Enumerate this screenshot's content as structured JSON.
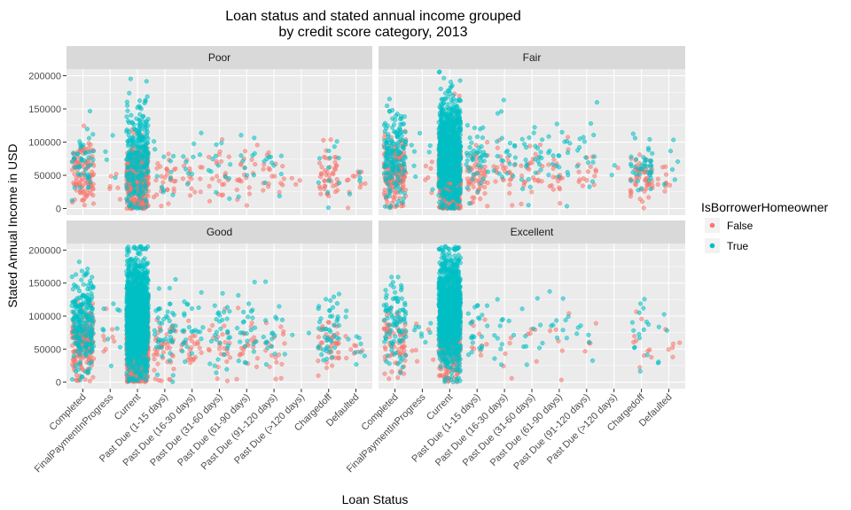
{
  "chart_data": {
    "type": "scatter",
    "title_line1": "Loan status and stated annual income grouped",
    "title_line2": "by credit score category, 2013",
    "xlabel": "Loan Status",
    "ylabel": "Stated Annual Income in USD",
    "ylim": [
      -10000,
      210000
    ],
    "y_ticks": [
      0,
      50000,
      100000,
      150000,
      200000
    ],
    "y_tick_labels": [
      "0",
      "50000",
      "100000",
      "150000",
      "200000"
    ],
    "categories": [
      "Completed",
      "FinalPaymentInProgress",
      "Current",
      "Past Due (1-15 days)",
      "Past Due (16-30 days)",
      "Past Due (31-60 days)",
      "Past Due (61-90 days)",
      "Past Due (91-120 days)",
      "Past Due (>120 days)",
      "Chargedoff",
      "Defaulted"
    ],
    "legend": {
      "title": "IsBorrowerHomeowner",
      "position": "right",
      "entries": [
        {
          "label": "False",
          "color": "#F8766D"
        },
        {
          "label": "True",
          "color": "#00BFC4"
        }
      ]
    },
    "facets": [
      {
        "name": "Poor",
        "groups": [
          {
            "cat": 0,
            "homeowner": false,
            "n": 110,
            "center": 55000,
            "spread": 25000
          },
          {
            "cat": 0,
            "homeowner": true,
            "n": 45,
            "center": 70000,
            "spread": 28000
          },
          {
            "cat": 1,
            "homeowner": false,
            "n": 6,
            "center": 40000,
            "spread": 15000
          },
          {
            "cat": 1,
            "homeowner": true,
            "n": 4,
            "center": 80000,
            "spread": 30000
          },
          {
            "cat": 2,
            "homeowner": false,
            "n": 380,
            "center": 45000,
            "spread": 28000
          },
          {
            "cat": 2,
            "homeowner": true,
            "n": 260,
            "center": 75000,
            "spread": 40000
          },
          {
            "cat": 3,
            "homeowner": false,
            "n": 30,
            "center": 45000,
            "spread": 20000
          },
          {
            "cat": 3,
            "homeowner": true,
            "n": 12,
            "center": 65000,
            "spread": 25000
          },
          {
            "cat": 4,
            "homeowner": false,
            "n": 15,
            "center": 45000,
            "spread": 20000
          },
          {
            "cat": 4,
            "homeowner": true,
            "n": 10,
            "center": 70000,
            "spread": 25000
          },
          {
            "cat": 5,
            "homeowner": false,
            "n": 22,
            "center": 50000,
            "spread": 20000
          },
          {
            "cat": 5,
            "homeowner": true,
            "n": 12,
            "center": 70000,
            "spread": 25000
          },
          {
            "cat": 6,
            "homeowner": false,
            "n": 20,
            "center": 50000,
            "spread": 20000
          },
          {
            "cat": 6,
            "homeowner": true,
            "n": 10,
            "center": 70000,
            "spread": 25000
          },
          {
            "cat": 7,
            "homeowner": false,
            "n": 18,
            "center": 45000,
            "spread": 18000
          },
          {
            "cat": 7,
            "homeowner": true,
            "n": 10,
            "center": 70000,
            "spread": 22000
          },
          {
            "cat": 8,
            "homeowner": false,
            "n": 3,
            "center": 40000,
            "spread": 10000
          },
          {
            "cat": 9,
            "homeowner": false,
            "n": 45,
            "center": 50000,
            "spread": 25000
          },
          {
            "cat": 9,
            "homeowner": true,
            "n": 12,
            "center": 70000,
            "spread": 30000
          },
          {
            "cat": 10,
            "homeowner": false,
            "n": 12,
            "center": 40000,
            "spread": 15000
          },
          {
            "cat": 10,
            "homeowner": true,
            "n": 4,
            "center": 45000,
            "spread": 15000
          }
        ]
      },
      {
        "name": "Fair",
        "groups": [
          {
            "cat": 0,
            "homeowner": false,
            "n": 170,
            "center": 55000,
            "spread": 25000
          },
          {
            "cat": 0,
            "homeowner": true,
            "n": 160,
            "center": 80000,
            "spread": 35000
          },
          {
            "cat": 1,
            "homeowner": false,
            "n": 6,
            "center": 50000,
            "spread": 20000
          },
          {
            "cat": 1,
            "homeowner": true,
            "n": 8,
            "center": 80000,
            "spread": 30000
          },
          {
            "cat": 2,
            "homeowner": false,
            "n": 700,
            "center": 55000,
            "spread": 30000
          },
          {
            "cat": 2,
            "homeowner": true,
            "n": 900,
            "center": 85000,
            "spread": 40000
          },
          {
            "cat": 3,
            "homeowner": false,
            "n": 55,
            "center": 50000,
            "spread": 20000
          },
          {
            "cat": 3,
            "homeowner": true,
            "n": 45,
            "center": 75000,
            "spread": 28000
          },
          {
            "cat": 4,
            "homeowner": false,
            "n": 25,
            "center": 50000,
            "spread": 20000
          },
          {
            "cat": 4,
            "homeowner": true,
            "n": 22,
            "center": 75000,
            "spread": 28000
          },
          {
            "cat": 5,
            "homeowner": false,
            "n": 25,
            "center": 50000,
            "spread": 20000
          },
          {
            "cat": 5,
            "homeowner": true,
            "n": 25,
            "center": 75000,
            "spread": 28000
          },
          {
            "cat": 6,
            "homeowner": false,
            "n": 20,
            "center": 50000,
            "spread": 20000
          },
          {
            "cat": 6,
            "homeowner": true,
            "n": 20,
            "center": 75000,
            "spread": 28000
          },
          {
            "cat": 7,
            "homeowner": false,
            "n": 15,
            "center": 50000,
            "spread": 20000
          },
          {
            "cat": 7,
            "homeowner": true,
            "n": 15,
            "center": 75000,
            "spread": 28000
          },
          {
            "cat": 8,
            "homeowner": false,
            "n": 1,
            "center": 50000,
            "spread": 10000
          },
          {
            "cat": 8,
            "homeowner": true,
            "n": 2,
            "center": 60000,
            "spread": 15000
          },
          {
            "cat": 9,
            "homeowner": false,
            "n": 55,
            "center": 45000,
            "spread": 20000
          },
          {
            "cat": 9,
            "homeowner": true,
            "n": 40,
            "center": 65000,
            "spread": 25000
          },
          {
            "cat": 10,
            "homeowner": false,
            "n": 10,
            "center": 40000,
            "spread": 15000
          },
          {
            "cat": 10,
            "homeowner": true,
            "n": 6,
            "center": 70000,
            "spread": 30000
          }
        ]
      },
      {
        "name": "Good",
        "groups": [
          {
            "cat": 0,
            "homeowner": false,
            "n": 200,
            "center": 60000,
            "spread": 28000
          },
          {
            "cat": 0,
            "homeowner": true,
            "n": 220,
            "center": 90000,
            "spread": 38000
          },
          {
            "cat": 1,
            "homeowner": false,
            "n": 8,
            "center": 60000,
            "spread": 20000
          },
          {
            "cat": 1,
            "homeowner": true,
            "n": 10,
            "center": 90000,
            "spread": 35000
          },
          {
            "cat": 2,
            "homeowner": false,
            "n": 800,
            "center": 60000,
            "spread": 30000
          },
          {
            "cat": 2,
            "homeowner": true,
            "n": 1300,
            "center": 100000,
            "spread": 42000
          },
          {
            "cat": 3,
            "homeowner": false,
            "n": 45,
            "center": 55000,
            "spread": 22000
          },
          {
            "cat": 3,
            "homeowner": true,
            "n": 45,
            "center": 85000,
            "spread": 30000
          },
          {
            "cat": 4,
            "homeowner": false,
            "n": 25,
            "center": 55000,
            "spread": 22000
          },
          {
            "cat": 4,
            "homeowner": true,
            "n": 25,
            "center": 80000,
            "spread": 30000
          },
          {
            "cat": 5,
            "homeowner": false,
            "n": 25,
            "center": 55000,
            "spread": 22000
          },
          {
            "cat": 5,
            "homeowner": true,
            "n": 30,
            "center": 80000,
            "spread": 30000
          },
          {
            "cat": 6,
            "homeowner": false,
            "n": 22,
            "center": 55000,
            "spread": 22000
          },
          {
            "cat": 6,
            "homeowner": true,
            "n": 25,
            "center": 80000,
            "spread": 30000
          },
          {
            "cat": 7,
            "homeowner": false,
            "n": 18,
            "center": 55000,
            "spread": 20000
          },
          {
            "cat": 7,
            "homeowner": true,
            "n": 18,
            "center": 75000,
            "spread": 28000
          },
          {
            "cat": 8,
            "homeowner": true,
            "n": 2,
            "center": 60000,
            "spread": 15000
          },
          {
            "cat": 9,
            "homeowner": false,
            "n": 40,
            "center": 55000,
            "spread": 22000
          },
          {
            "cat": 9,
            "homeowner": true,
            "n": 45,
            "center": 75000,
            "spread": 28000
          },
          {
            "cat": 10,
            "homeowner": false,
            "n": 8,
            "center": 40000,
            "spread": 15000
          },
          {
            "cat": 10,
            "homeowner": true,
            "n": 10,
            "center": 60000,
            "spread": 25000
          }
        ]
      },
      {
        "name": "Excellent",
        "groups": [
          {
            "cat": 0,
            "homeowner": false,
            "n": 70,
            "center": 65000,
            "spread": 28000
          },
          {
            "cat": 0,
            "homeowner": true,
            "n": 90,
            "center": 95000,
            "spread": 38000
          },
          {
            "cat": 1,
            "homeowner": false,
            "n": 6,
            "center": 60000,
            "spread": 20000
          },
          {
            "cat": 1,
            "homeowner": true,
            "n": 8,
            "center": 90000,
            "spread": 35000
          },
          {
            "cat": 2,
            "homeowner": false,
            "n": 300,
            "center": 65000,
            "spread": 30000
          },
          {
            "cat": 2,
            "homeowner": true,
            "n": 1100,
            "center": 110000,
            "spread": 40000
          },
          {
            "cat": 3,
            "homeowner": false,
            "n": 10,
            "center": 60000,
            "spread": 25000
          },
          {
            "cat": 3,
            "homeowner": true,
            "n": 22,
            "center": 85000,
            "spread": 35000
          },
          {
            "cat": 4,
            "homeowner": false,
            "n": 5,
            "center": 60000,
            "spread": 20000
          },
          {
            "cat": 4,
            "homeowner": true,
            "n": 12,
            "center": 80000,
            "spread": 30000
          },
          {
            "cat": 5,
            "homeowner": false,
            "n": 5,
            "center": 60000,
            "spread": 20000
          },
          {
            "cat": 5,
            "homeowner": true,
            "n": 10,
            "center": 80000,
            "spread": 30000
          },
          {
            "cat": 6,
            "homeowner": false,
            "n": 6,
            "center": 60000,
            "spread": 20000
          },
          {
            "cat": 6,
            "homeowner": true,
            "n": 10,
            "center": 80000,
            "spread": 30000
          },
          {
            "cat": 7,
            "homeowner": false,
            "n": 4,
            "center": 55000,
            "spread": 15000
          },
          {
            "cat": 7,
            "homeowner": true,
            "n": 6,
            "center": 70000,
            "spread": 20000
          },
          {
            "cat": 9,
            "homeowner": false,
            "n": 10,
            "center": 60000,
            "spread": 20000
          },
          {
            "cat": 9,
            "homeowner": true,
            "n": 15,
            "center": 80000,
            "spread": 30000
          },
          {
            "cat": 10,
            "homeowner": false,
            "n": 6,
            "center": 50000,
            "spread": 20000
          },
          {
            "cat": 10,
            "homeowner": true,
            "n": 5,
            "center": 60000,
            "spread": 20000
          }
        ]
      }
    ]
  }
}
